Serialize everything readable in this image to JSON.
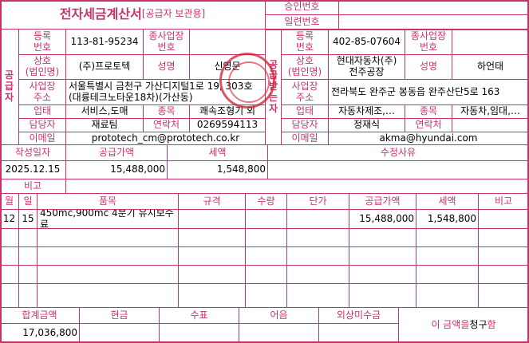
{
  "title": {
    "main": "전자세금계산서",
    "sub": "[공급자 보관용]"
  },
  "approval": {
    "approval_no_label": "승인번호",
    "approval_no": "",
    "serial_no_label": "일련번호",
    "serial_no": ""
  },
  "labels": {
    "supplier": "공\n급\n자",
    "buyer": "공\n급\n받\n는\n자",
    "reg_no": "등록\n번호",
    "sub_biz_no": "종사업장\n번호",
    "company": "상호\n(법인명)",
    "ceo": "성명",
    "address": "사업장\n주소",
    "biz_type": "업태",
    "biz_item": "종목",
    "manager": "담당자",
    "contact": "연락처",
    "email": "이메일"
  },
  "supplier": {
    "reg_no": "113-81-95234",
    "sub_biz_no": "",
    "company": "(주)프로토텍",
    "ceo": "신영문",
    "address": "서울특별시 금천구 가산디지털1로 19, 303호(대륭테크노타운18차)(가산동)",
    "biz_type": "서비스,도매",
    "biz_item": "쾌속조형기 외",
    "manager": "재료팀",
    "contact": "0269594113",
    "email": "prototech_cm@prototech.co.kr"
  },
  "buyer": {
    "reg_no": "402-85-07604",
    "sub_biz_no": "",
    "company": "현대자동차(주)\n전주공장",
    "ceo": "하언태",
    "address": "전라북도 완주군 봉동읍 완주산단5로 163",
    "biz_type": "자동차제조,…",
    "biz_item": "자동차,임대,…",
    "manager": "정재식",
    "contact": "",
    "email": "akma@hyundai.com"
  },
  "summary": {
    "date_label": "작성일자",
    "supply_label": "공급가액",
    "tax_label": "세액",
    "reason_label": "수정사유",
    "date": "2025.12.15",
    "supply": "15,488,000",
    "tax": "1,548,800",
    "reason": "",
    "note_label": "비고",
    "note": ""
  },
  "items": {
    "headers": [
      "월",
      "일",
      "품목",
      "규격",
      "수량",
      "단가",
      "공급가액",
      "세액",
      "비고"
    ],
    "rows": [
      [
        "12",
        "15",
        "450mc,900mc 4분기 유지보수료",
        "",
        "",
        "",
        "15,488,000",
        "1,548,800",
        ""
      ]
    ]
  },
  "totals": {
    "headers": [
      "합계금액",
      "현금",
      "수표",
      "어음",
      "외상미수금"
    ],
    "values": [
      "17,036,800",
      "",
      "",
      "",
      ""
    ],
    "claim_prefix": "이 금액을 ",
    "claim_mark": "청구",
    "claim_suffix": "함"
  },
  "colors": {
    "accent": "#c8336a",
    "stamp": "#d21e32"
  }
}
